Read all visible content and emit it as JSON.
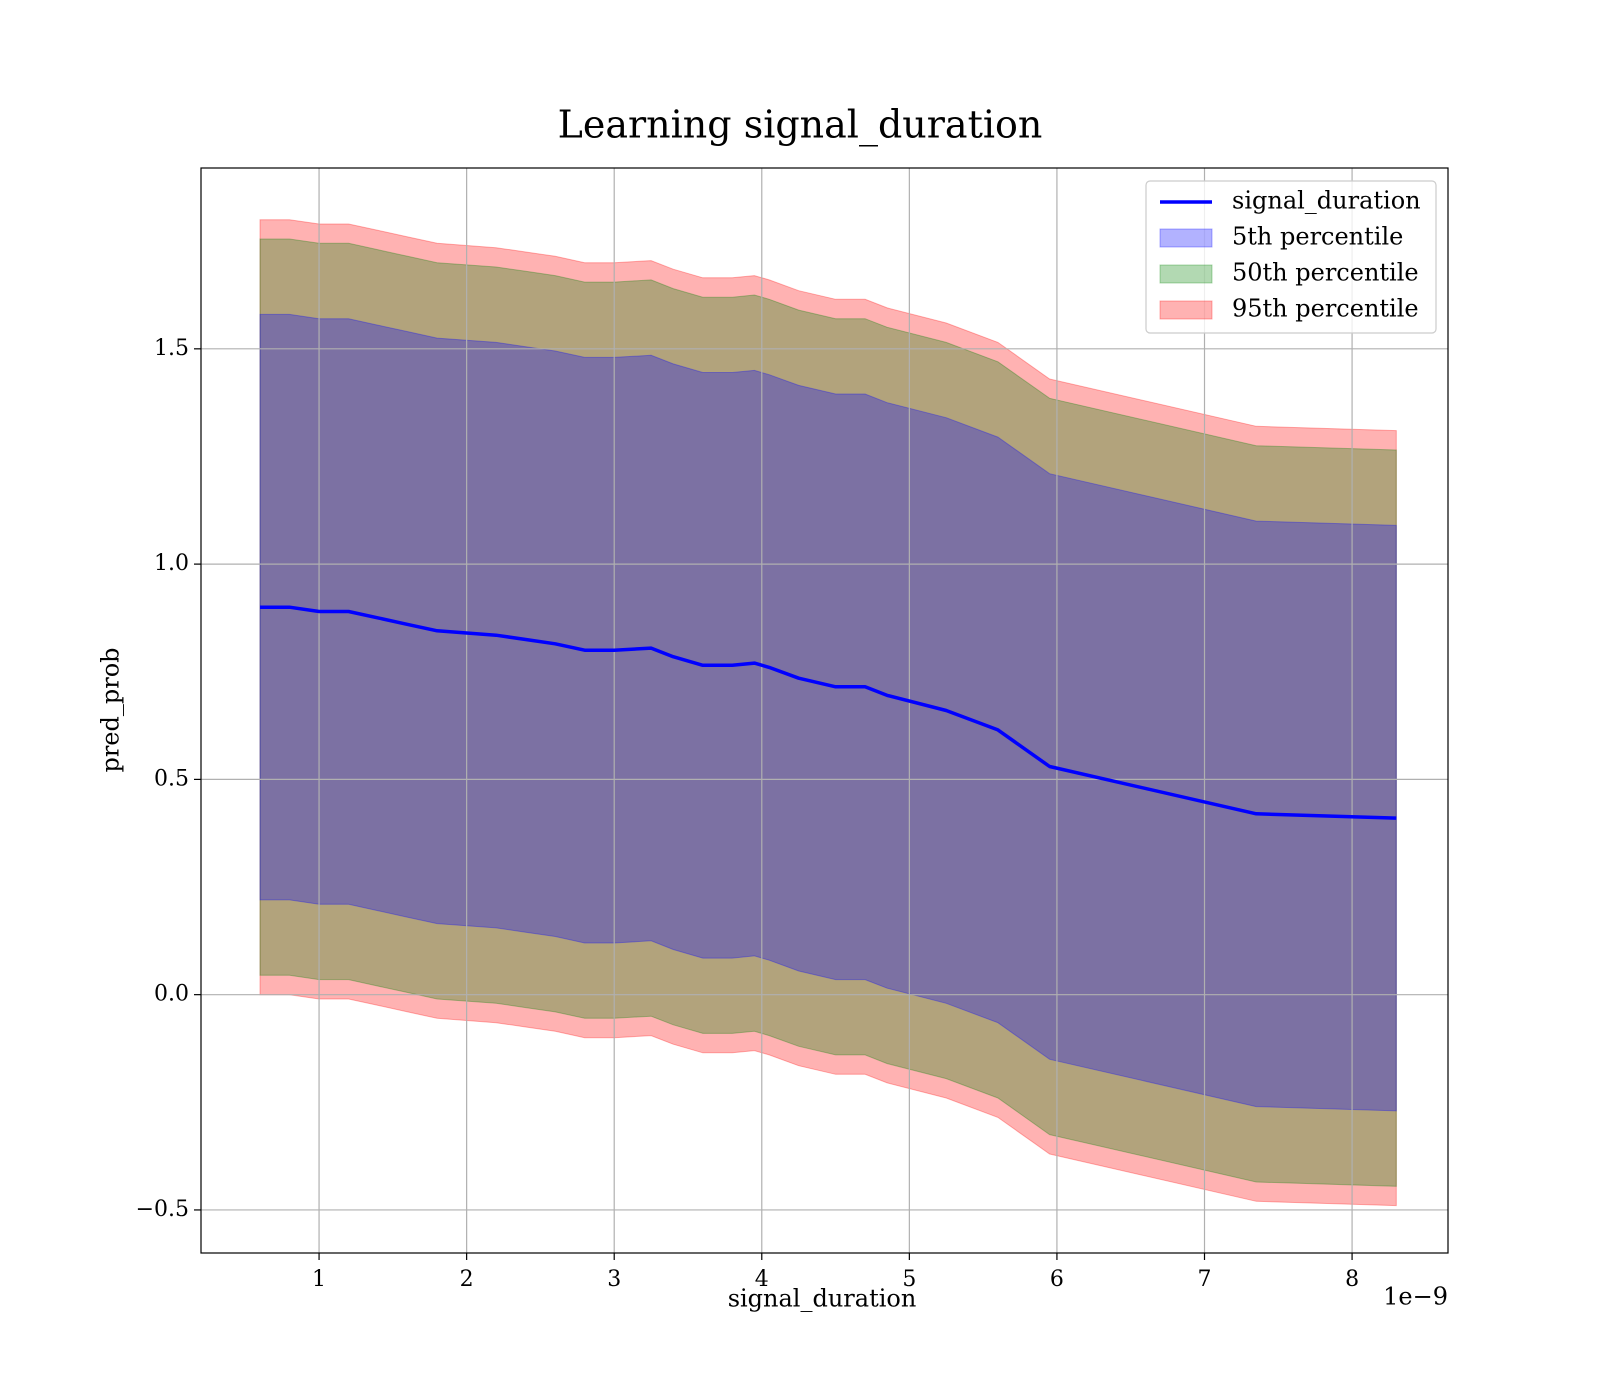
{
  "chart_data": {
    "type": "area",
    "title": "Learning signal_duration",
    "xlabel": "signal_duration",
    "ylabel": "pred_prob",
    "x_offset_label": "1e−9",
    "xlim": [
      0.2,
      8.65
    ],
    "ylim": [
      -0.6,
      1.92
    ],
    "grid": true,
    "legend_position": "upper right",
    "x_ticks": [
      {
        "value": 1,
        "label": "1"
      },
      {
        "value": 2,
        "label": "2"
      },
      {
        "value": 3,
        "label": "3"
      },
      {
        "value": 4,
        "label": "4"
      },
      {
        "value": 5,
        "label": "5"
      },
      {
        "value": 6,
        "label": "6"
      },
      {
        "value": 7,
        "label": "7"
      },
      {
        "value": 8,
        "label": "8"
      }
    ],
    "y_ticks": [
      {
        "value": -0.5,
        "label": "−0.5"
      },
      {
        "value": 0.0,
        "label": "0.0"
      },
      {
        "value": 0.5,
        "label": "0.5"
      },
      {
        "value": 1.0,
        "label": "1.0"
      },
      {
        "value": 1.5,
        "label": "1.5"
      }
    ],
    "x": [
      0.6,
      0.8,
      1.0,
      1.2,
      1.4,
      1.6,
      1.8,
      2.0,
      2.2,
      2.4,
      2.6,
      2.8,
      3.0,
      3.25,
      3.4,
      3.6,
      3.8,
      3.95,
      4.05,
      4.25,
      4.5,
      4.7,
      4.85,
      5.25,
      5.6,
      5.95,
      7.35,
      8.3
    ],
    "series": [
      {
        "name": "signal_duration",
        "color": "#0000ff",
        "values": [
          0.9,
          0.9,
          0.89,
          0.89,
          0.875,
          0.86,
          0.845,
          0.84,
          0.835,
          0.825,
          0.815,
          0.8,
          0.8,
          0.805,
          0.785,
          0.765,
          0.765,
          0.77,
          0.76,
          0.735,
          0.715,
          0.715,
          0.695,
          0.66,
          0.615,
          0.53,
          0.42,
          0.41
        ]
      }
    ],
    "bands": [
      {
        "name": "5th percentile",
        "color": "#0000ff",
        "lower": [
          0.22,
          0.22,
          0.21,
          0.21,
          0.195,
          0.18,
          0.165,
          0.16,
          0.155,
          0.145,
          0.135,
          0.12,
          0.12,
          0.125,
          0.105,
          0.085,
          0.085,
          0.09,
          0.08,
          0.055,
          0.035,
          0.035,
          0.015,
          -0.02,
          -0.065,
          -0.15,
          -0.26,
          -0.27
        ],
        "upper": [
          1.58,
          1.58,
          1.57,
          1.57,
          1.555,
          1.54,
          1.525,
          1.52,
          1.515,
          1.505,
          1.495,
          1.48,
          1.48,
          1.485,
          1.465,
          1.445,
          1.445,
          1.45,
          1.44,
          1.415,
          1.395,
          1.395,
          1.375,
          1.34,
          1.295,
          1.21,
          1.1,
          1.09
        ]
      },
      {
        "name": "50th percentile",
        "color": "#008000",
        "lower": [
          0.045,
          0.045,
          0.035,
          0.035,
          0.02,
          0.005,
          -0.01,
          -0.015,
          -0.02,
          -0.03,
          -0.04,
          -0.055,
          -0.055,
          -0.05,
          -0.07,
          -0.09,
          -0.09,
          -0.085,
          -0.095,
          -0.12,
          -0.14,
          -0.14,
          -0.16,
          -0.195,
          -0.24,
          -0.325,
          -0.435,
          -0.445
        ],
        "upper": [
          1.755,
          1.755,
          1.745,
          1.745,
          1.73,
          1.715,
          1.7,
          1.695,
          1.69,
          1.68,
          1.67,
          1.655,
          1.655,
          1.66,
          1.64,
          1.62,
          1.62,
          1.625,
          1.615,
          1.59,
          1.57,
          1.57,
          1.55,
          1.515,
          1.47,
          1.385,
          1.275,
          1.265
        ]
      },
      {
        "name": "95th percentile",
        "color": "#ff0000",
        "lower": [
          0.0,
          0.0,
          -0.01,
          -0.01,
          -0.025,
          -0.04,
          -0.055,
          -0.06,
          -0.065,
          -0.075,
          -0.085,
          -0.1,
          -0.1,
          -0.095,
          -0.115,
          -0.135,
          -0.135,
          -0.13,
          -0.14,
          -0.165,
          -0.185,
          -0.185,
          -0.205,
          -0.24,
          -0.285,
          -0.37,
          -0.48,
          -0.49
        ],
        "upper": [
          1.8,
          1.8,
          1.79,
          1.79,
          1.775,
          1.76,
          1.745,
          1.74,
          1.735,
          1.725,
          1.715,
          1.7,
          1.7,
          1.705,
          1.685,
          1.665,
          1.665,
          1.67,
          1.66,
          1.635,
          1.615,
          1.615,
          1.595,
          1.56,
          1.515,
          1.43,
          1.32,
          1.31
        ]
      }
    ]
  }
}
